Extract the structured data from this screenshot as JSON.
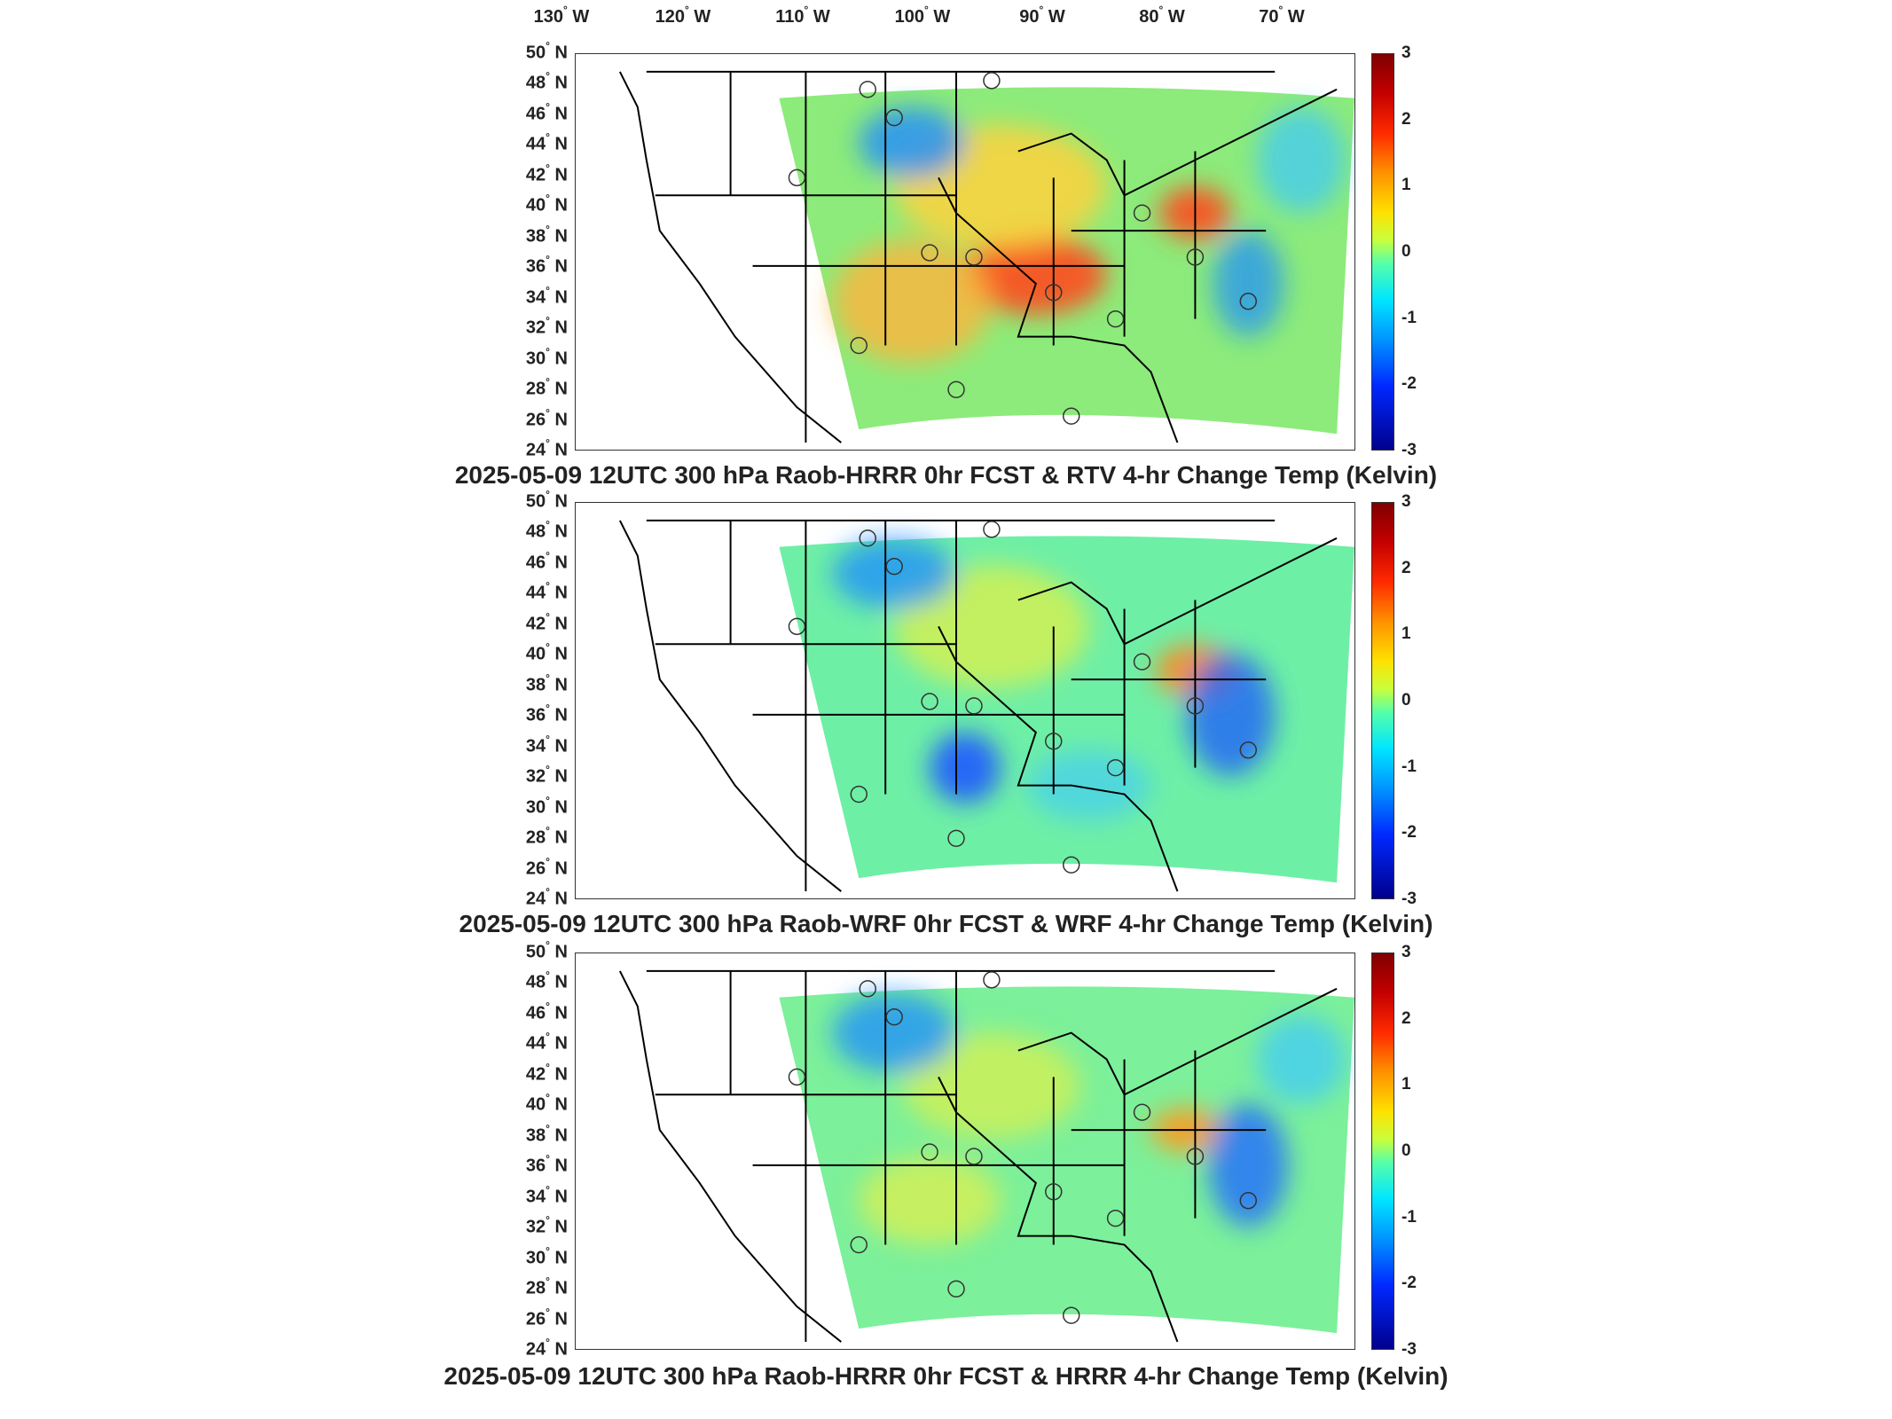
{
  "longitude_labels": [
    "130",
    "120",
    "110",
    "100",
    "90",
    "80",
    "70"
  ],
  "longitude_suffix": "W",
  "latitude_labels": [
    "50",
    "48",
    "46",
    "44",
    "42",
    "40",
    "38",
    "36",
    "34",
    "32",
    "30",
    "28",
    "26",
    "24"
  ],
  "latitude_suffix": "N",
  "degree_symbol": "°",
  "colorbar": {
    "ticks": [
      "3",
      "2",
      "1",
      "0",
      "-1",
      "-2",
      "-3"
    ],
    "range": [
      -3,
      3
    ],
    "colormap": "jet",
    "colors": [
      "#7f0000",
      "#ff2a00",
      "#ffe100",
      "#55ffaa",
      "#00e6ff",
      "#0028ff",
      "#00008c"
    ]
  },
  "panels": [
    {
      "title": "2025-05-09 12UTC 300 hPa Raob-HRRR 0hr FCST & RTV 4-hr Change Temp (Kelvin)",
      "dominant_field_color": "#ffd23c",
      "hot_spot_color": "#ff4a1e",
      "cool_spot_color": "#1e8cff"
    },
    {
      "title": "2025-05-09 12UTC 300 hPa Raob-WRF 0hr FCST & WRF 4-hr Change Temp (Kelvin)",
      "dominant_field_color": "#6eefa6",
      "hot_spot_color": "#ff8a1e",
      "cool_spot_color": "#1e5aff"
    },
    {
      "title": "2025-05-09 12UTC 300 hPa Raob-HRRR 0hr FCST & HRRR 4-hr Change Temp (Kelvin)",
      "dominant_field_color": "#7cf09a",
      "hot_spot_color": "#ff9a1e",
      "cool_spot_color": "#1e6aff"
    }
  ]
}
